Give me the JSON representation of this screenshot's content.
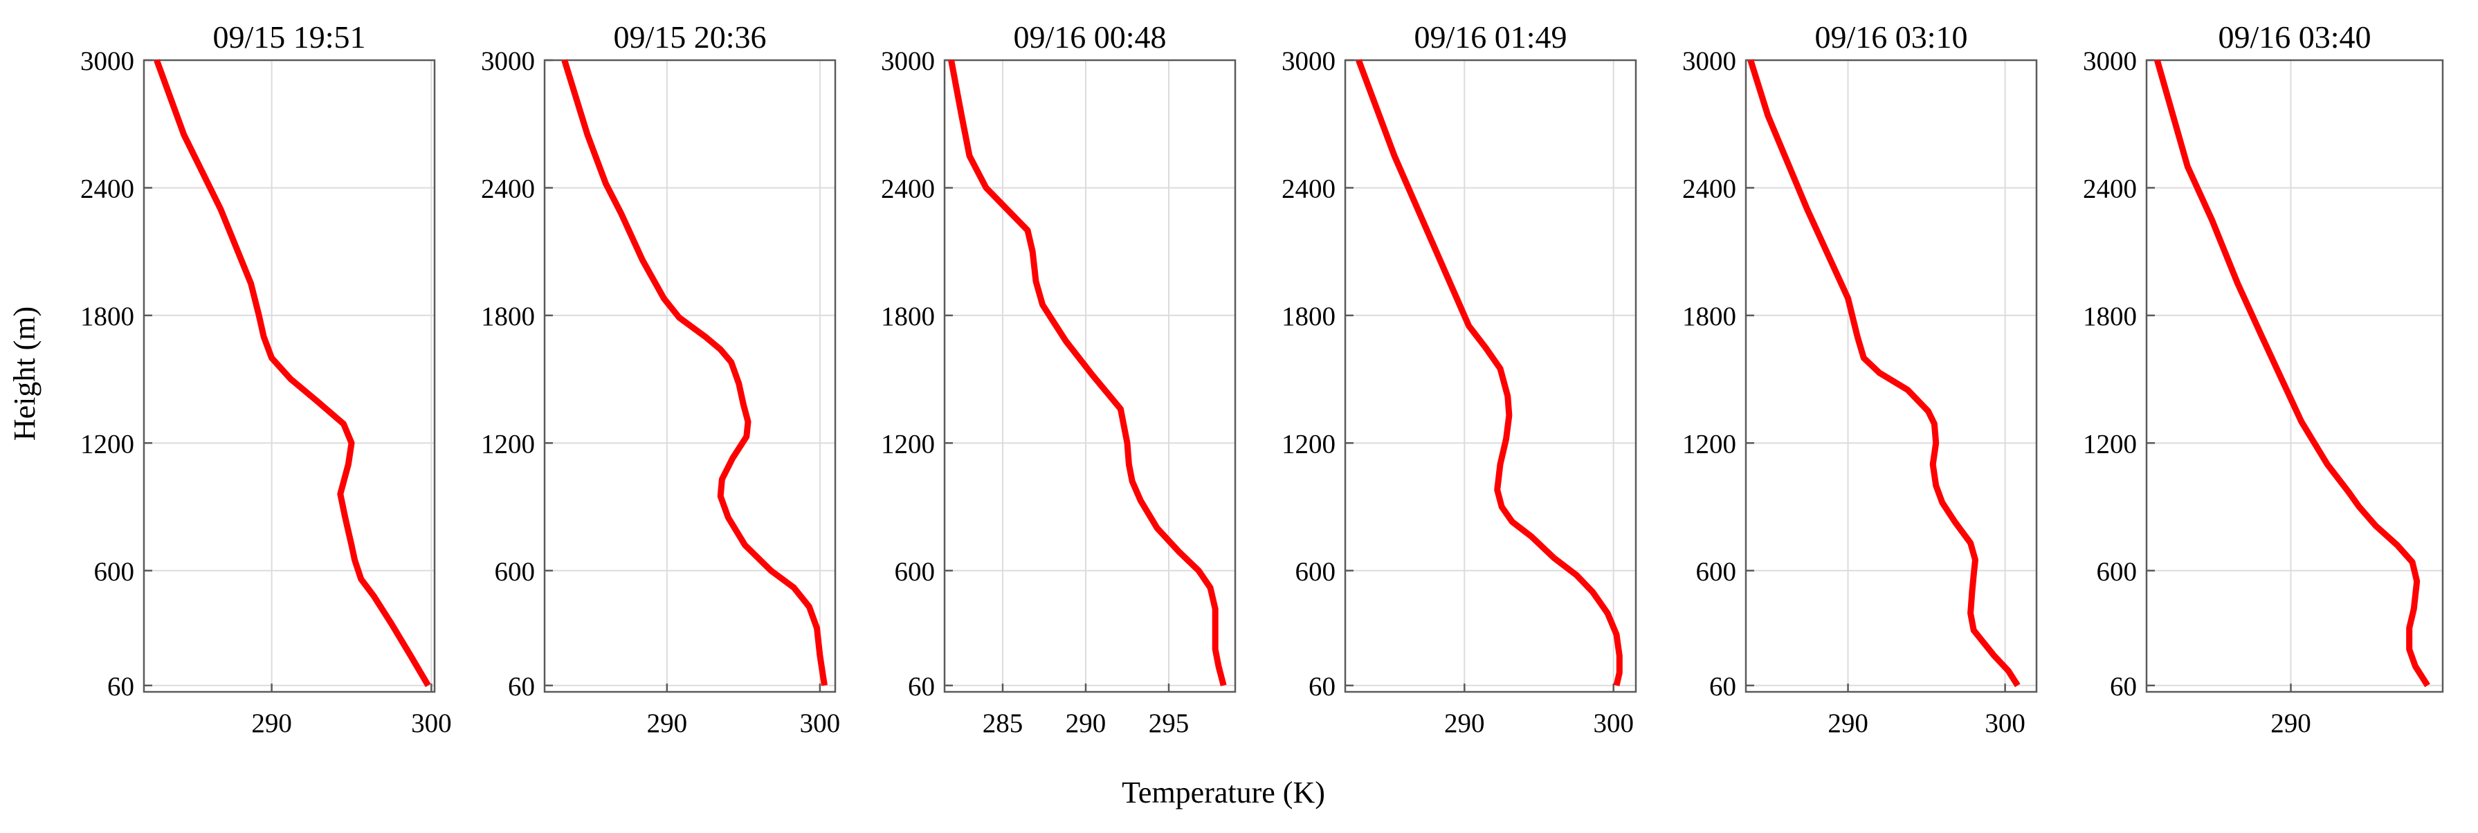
{
  "figure": {
    "ylabel": "Height (m)",
    "xlabel": "Temperature (K)"
  },
  "style": {
    "series_color": "#ff0000",
    "grid_color": "#dcdcdc",
    "axis_color": "#5a5a5a"
  },
  "chart_data": [
    {
      "type": "line",
      "title": "09/15 19:51",
      "xlabel": "Temperature (K)",
      "ylabel": "Height (m)",
      "xlim": [
        282,
        300.2
      ],
      "ylim": [
        30,
        3000
      ],
      "xticks": [
        290,
        300
      ],
      "yticks": [
        60,
        600,
        1200,
        1800,
        2400,
        3000
      ],
      "grid": true,
      "legend": "none",
      "series": [
        {
          "x": [
            299.8,
            298.7,
            297.5,
            296.4,
            295.6,
            295.2,
            295.0,
            294.6,
            294.3,
            294.8,
            295.0,
            294.5,
            292.8,
            291.2,
            290.0,
            289.5,
            289.2,
            288.7,
            286.8,
            284.5,
            282.8
          ],
          "y": [
            60,
            200,
            350,
            480,
            560,
            650,
            720,
            850,
            960,
            1100,
            1200,
            1290,
            1400,
            1500,
            1600,
            1700,
            1800,
            1950,
            2300,
            2650,
            3000
          ]
        }
      ]
    },
    {
      "type": "line",
      "title": "09/15 20:36",
      "xlabel": "Temperature (K)",
      "ylabel": "Height (m)",
      "xlim": [
        282,
        301
      ],
      "ylim": [
        30,
        3000
      ],
      "xticks": [
        290,
        300
      ],
      "yticks": [
        60,
        600,
        1200,
        1800,
        2400,
        3000
      ],
      "grid": true,
      "legend": "none",
      "series": [
        {
          "x": [
            300.3,
            300.0,
            299.8,
            299.3,
            298.3,
            296.8,
            295.1,
            294.0,
            293.5,
            293.6,
            294.3,
            295.2,
            295.3,
            295.0,
            294.7,
            294.2,
            293.5,
            292.5,
            290.8,
            289.8,
            288.4,
            287.0,
            286.0,
            284.8,
            283.3
          ],
          "y": [
            60,
            200,
            330,
            430,
            520,
            600,
            720,
            850,
            950,
            1030,
            1130,
            1230,
            1300,
            1380,
            1480,
            1580,
            1640,
            1700,
            1790,
            1880,
            2060,
            2280,
            2420,
            2650,
            3000
          ]
        }
      ]
    },
    {
      "type": "line",
      "title": "09/16 00:48",
      "xlabel": "Temperature (K)",
      "ylabel": "Height (m)",
      "xlim": [
        281.5,
        299
      ],
      "ylim": [
        30,
        3000
      ],
      "xticks": [
        285,
        290,
        295
      ],
      "yticks": [
        60,
        600,
        1200,
        1800,
        2400,
        3000
      ],
      "grid": true,
      "legend": "none",
      "series": [
        {
          "x": [
            298.3,
            298.0,
            297.8,
            297.8,
            297.8,
            297.5,
            296.8,
            295.6,
            294.3,
            293.3,
            292.8,
            292.6,
            292.5,
            292.1,
            290.4,
            288.8,
            287.4,
            287.0,
            286.8,
            286.5,
            285.5,
            284.0,
            283.0,
            282.5,
            281.9
          ],
          "y": [
            60,
            150,
            230,
            330,
            420,
            520,
            600,
            690,
            800,
            930,
            1020,
            1100,
            1200,
            1360,
            1520,
            1680,
            1850,
            1960,
            2100,
            2200,
            2280,
            2400,
            2550,
            2750,
            3000
          ]
        }
      ]
    },
    {
      "type": "line",
      "title": "09/16 01:49",
      "xlabel": "Temperature (K)",
      "ylabel": "Height (m)",
      "xlim": [
        282,
        301.5
      ],
      "ylim": [
        30,
        3000
      ],
      "xticks": [
        290,
        300
      ],
      "yticks": [
        60,
        600,
        1200,
        1800,
        2400,
        3000
      ],
      "grid": true,
      "legend": "none",
      "series": [
        {
          "x": [
            300.2,
            300.4,
            300.4,
            300.2,
            299.6,
            298.6,
            297.5,
            296.0,
            294.5,
            293.2,
            292.5,
            292.2,
            292.4,
            292.8,
            293.0,
            292.9,
            292.4,
            291.4,
            290.3,
            287.8,
            285.3,
            282.9
          ],
          "y": [
            60,
            120,
            200,
            300,
            400,
            500,
            580,
            660,
            760,
            830,
            900,
            980,
            1100,
            1220,
            1330,
            1420,
            1550,
            1650,
            1750,
            2150,
            2550,
            3000
          ]
        }
      ]
    },
    {
      "type": "line",
      "title": "09/16 03:10",
      "xlabel": "Temperature (K)",
      "ylabel": "Height (m)",
      "xlim": [
        283.5,
        302
      ],
      "ylim": [
        30,
        3000
      ],
      "xticks": [
        290,
        300
      ],
      "yticks": [
        60,
        600,
        1200,
        1800,
        2400,
        3000
      ],
      "grid": true,
      "legend": "none",
      "series": [
        {
          "x": [
            300.8,
            300.2,
            299.3,
            298.0,
            297.8,
            297.9,
            298.0,
            298.1,
            297.8,
            296.8,
            296.0,
            295.6,
            295.4,
            295.6,
            295.5,
            295.1,
            293.8,
            292.0,
            291.0,
            290.6,
            290.3,
            290.0,
            287.4,
            284.9,
            283.8
          ],
          "y": [
            60,
            130,
            200,
            320,
            400,
            500,
            580,
            650,
            730,
            830,
            920,
            1000,
            1100,
            1200,
            1290,
            1350,
            1450,
            1530,
            1600,
            1700,
            1790,
            1880,
            2300,
            2740,
            3000
          ]
        }
      ]
    },
    {
      "type": "line",
      "title": "09/16 03:40",
      "xlabel": "Temperature (K)",
      "ylabel": "Height (m)",
      "xlim": [
        280.5,
        300
      ],
      "ylim": [
        30,
        3000
      ],
      "xticks": [
        290
      ],
      "yticks": [
        60,
        600,
        1200,
        1800,
        2400,
        3000
      ],
      "grid": true,
      "legend": "none",
      "series": [
        {
          "x": [
            299.0,
            298.2,
            297.8,
            297.8,
            298.1,
            298.3,
            298.0,
            297.0,
            295.6,
            294.5,
            293.8,
            292.4,
            290.7,
            289.4,
            288.1,
            286.5,
            284.8,
            283.2,
            281.2
          ],
          "y": [
            60,
            150,
            230,
            330,
            420,
            550,
            640,
            720,
            810,
            900,
            970,
            1100,
            1300,
            1500,
            1700,
            1950,
            2250,
            2500,
            3000
          ]
        }
      ]
    }
  ]
}
